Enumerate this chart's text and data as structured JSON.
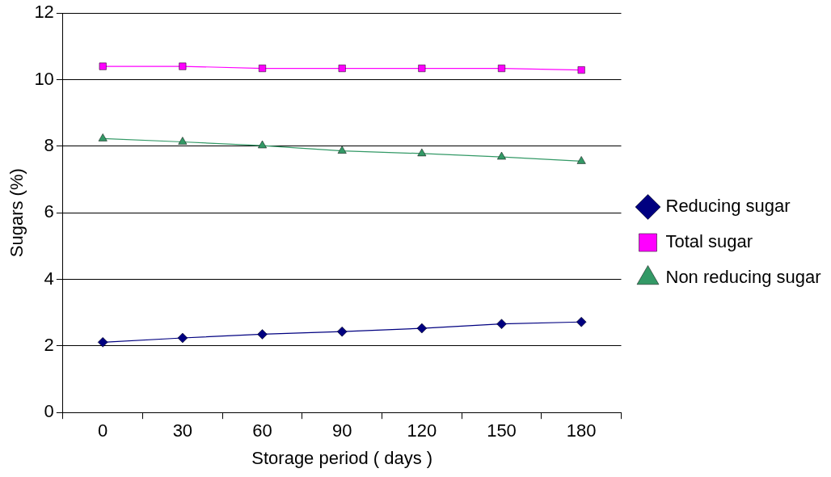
{
  "chart_data": {
    "type": "line",
    "xlabel": "Storage period ( days )",
    "ylabel": "Sugars (%)",
    "categories": [
      "0",
      "30",
      "60",
      "90",
      "120",
      "150",
      "180"
    ],
    "ylim": [
      0,
      12
    ],
    "yticks": [
      0,
      2,
      4,
      6,
      8,
      10,
      12
    ],
    "grid": "y",
    "legend": "right",
    "series": [
      {
        "name": "Reducing sugar",
        "color": "#000080",
        "marker": "diamond",
        "values": [
          2.11,
          2.24,
          2.35,
          2.43,
          2.53,
          2.66,
          2.72
        ]
      },
      {
        "name": "Total sugar",
        "color": "#ff00ff",
        "marker": "square",
        "values": [
          10.4,
          10.4,
          10.34,
          10.34,
          10.34,
          10.34,
          10.29
        ]
      },
      {
        "name": "Non reducing sugar",
        "color": "#339966",
        "marker": "triangle",
        "values": [
          8.23,
          8.13,
          8.02,
          7.86,
          7.78,
          7.68,
          7.55
        ]
      }
    ]
  }
}
